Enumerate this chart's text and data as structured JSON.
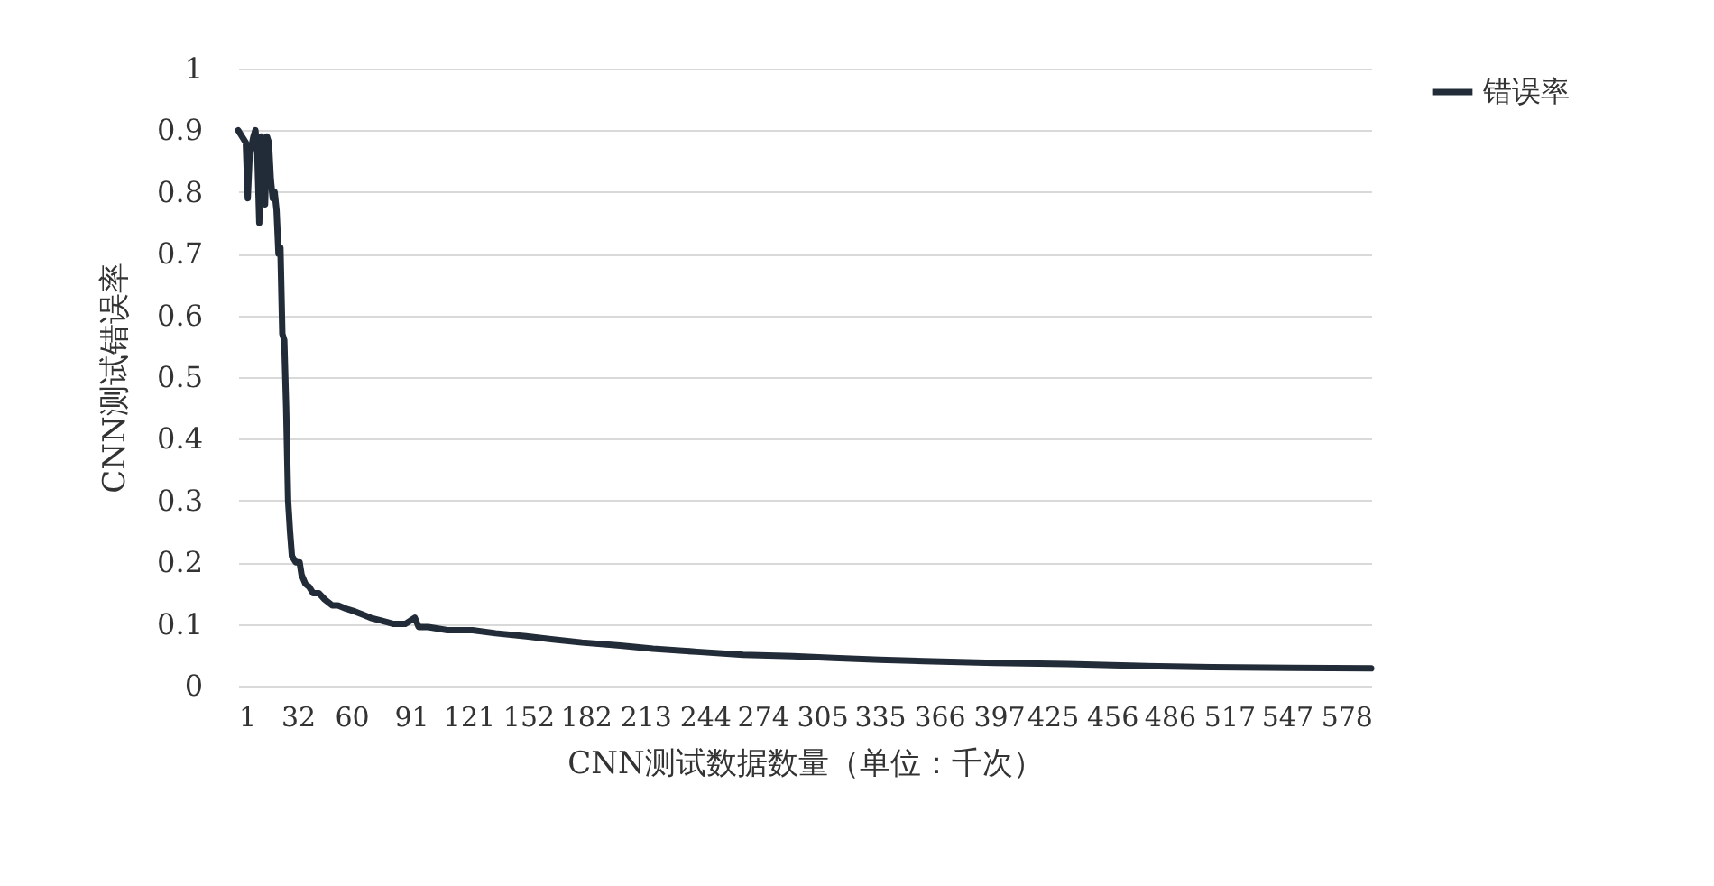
{
  "chart_data": {
    "type": "line",
    "xlabel": "CNN测试数据数量（单位：千次）",
    "ylabel": "CNN测试错误率",
    "xlim": [
      1,
      591
    ],
    "xticks": [
      1,
      32,
      60,
      91,
      121,
      152,
      182,
      213,
      244,
      274,
      305,
      335,
      366,
      397,
      425,
      456,
      486,
      517,
      547,
      578
    ],
    "ylim": [
      0,
      1
    ],
    "yticks": [
      0,
      0.1,
      0.2,
      0.3,
      0.4,
      0.5,
      0.6,
      0.7,
      0.8,
      0.9,
      1
    ],
    "grid": "y",
    "legend": "right",
    "line_style": "solid",
    "series": [
      {
        "name": "错误率",
        "color": "#222b38",
        "x": [
          1,
          3,
          5,
          6,
          7,
          9,
          10,
          11,
          12,
          13,
          14,
          15,
          16,
          17,
          18,
          19,
          20,
          21,
          22,
          23,
          24,
          25,
          26,
          27,
          28,
          29,
          31,
          33,
          34,
          36,
          38,
          40,
          43,
          46,
          50,
          53,
          57,
          62,
          66,
          70,
          76,
          82,
          88,
          93,
          95,
          100,
          110,
          123,
          135,
          151,
          165,
          180,
          200,
          217,
          240,
          264,
          290,
          311,
          335,
          358,
          395,
          433,
          470,
          508,
          550,
          591
        ],
        "values": [
          0.9,
          0.89,
          0.88,
          0.79,
          0.86,
          0.89,
          0.9,
          0.86,
          0.75,
          0.89,
          0.8,
          0.78,
          0.89,
          0.88,
          0.82,
          0.79,
          0.8,
          0.77,
          0.7,
          0.71,
          0.57,
          0.56,
          0.45,
          0.3,
          0.25,
          0.21,
          0.2,
          0.2,
          0.18,
          0.165,
          0.16,
          0.15,
          0.15,
          0.14,
          0.13,
          0.13,
          0.125,
          0.12,
          0.115,
          0.11,
          0.105,
          0.1,
          0.1,
          0.11,
          0.095,
          0.095,
          0.09,
          0.09,
          0.085,
          0.08,
          0.075,
          0.07,
          0.065,
          0.06,
          0.055,
          0.05,
          0.048,
          0.045,
          0.042,
          0.04,
          0.037,
          0.035,
          0.032,
          0.03,
          0.029,
          0.028
        ]
      }
    ]
  }
}
